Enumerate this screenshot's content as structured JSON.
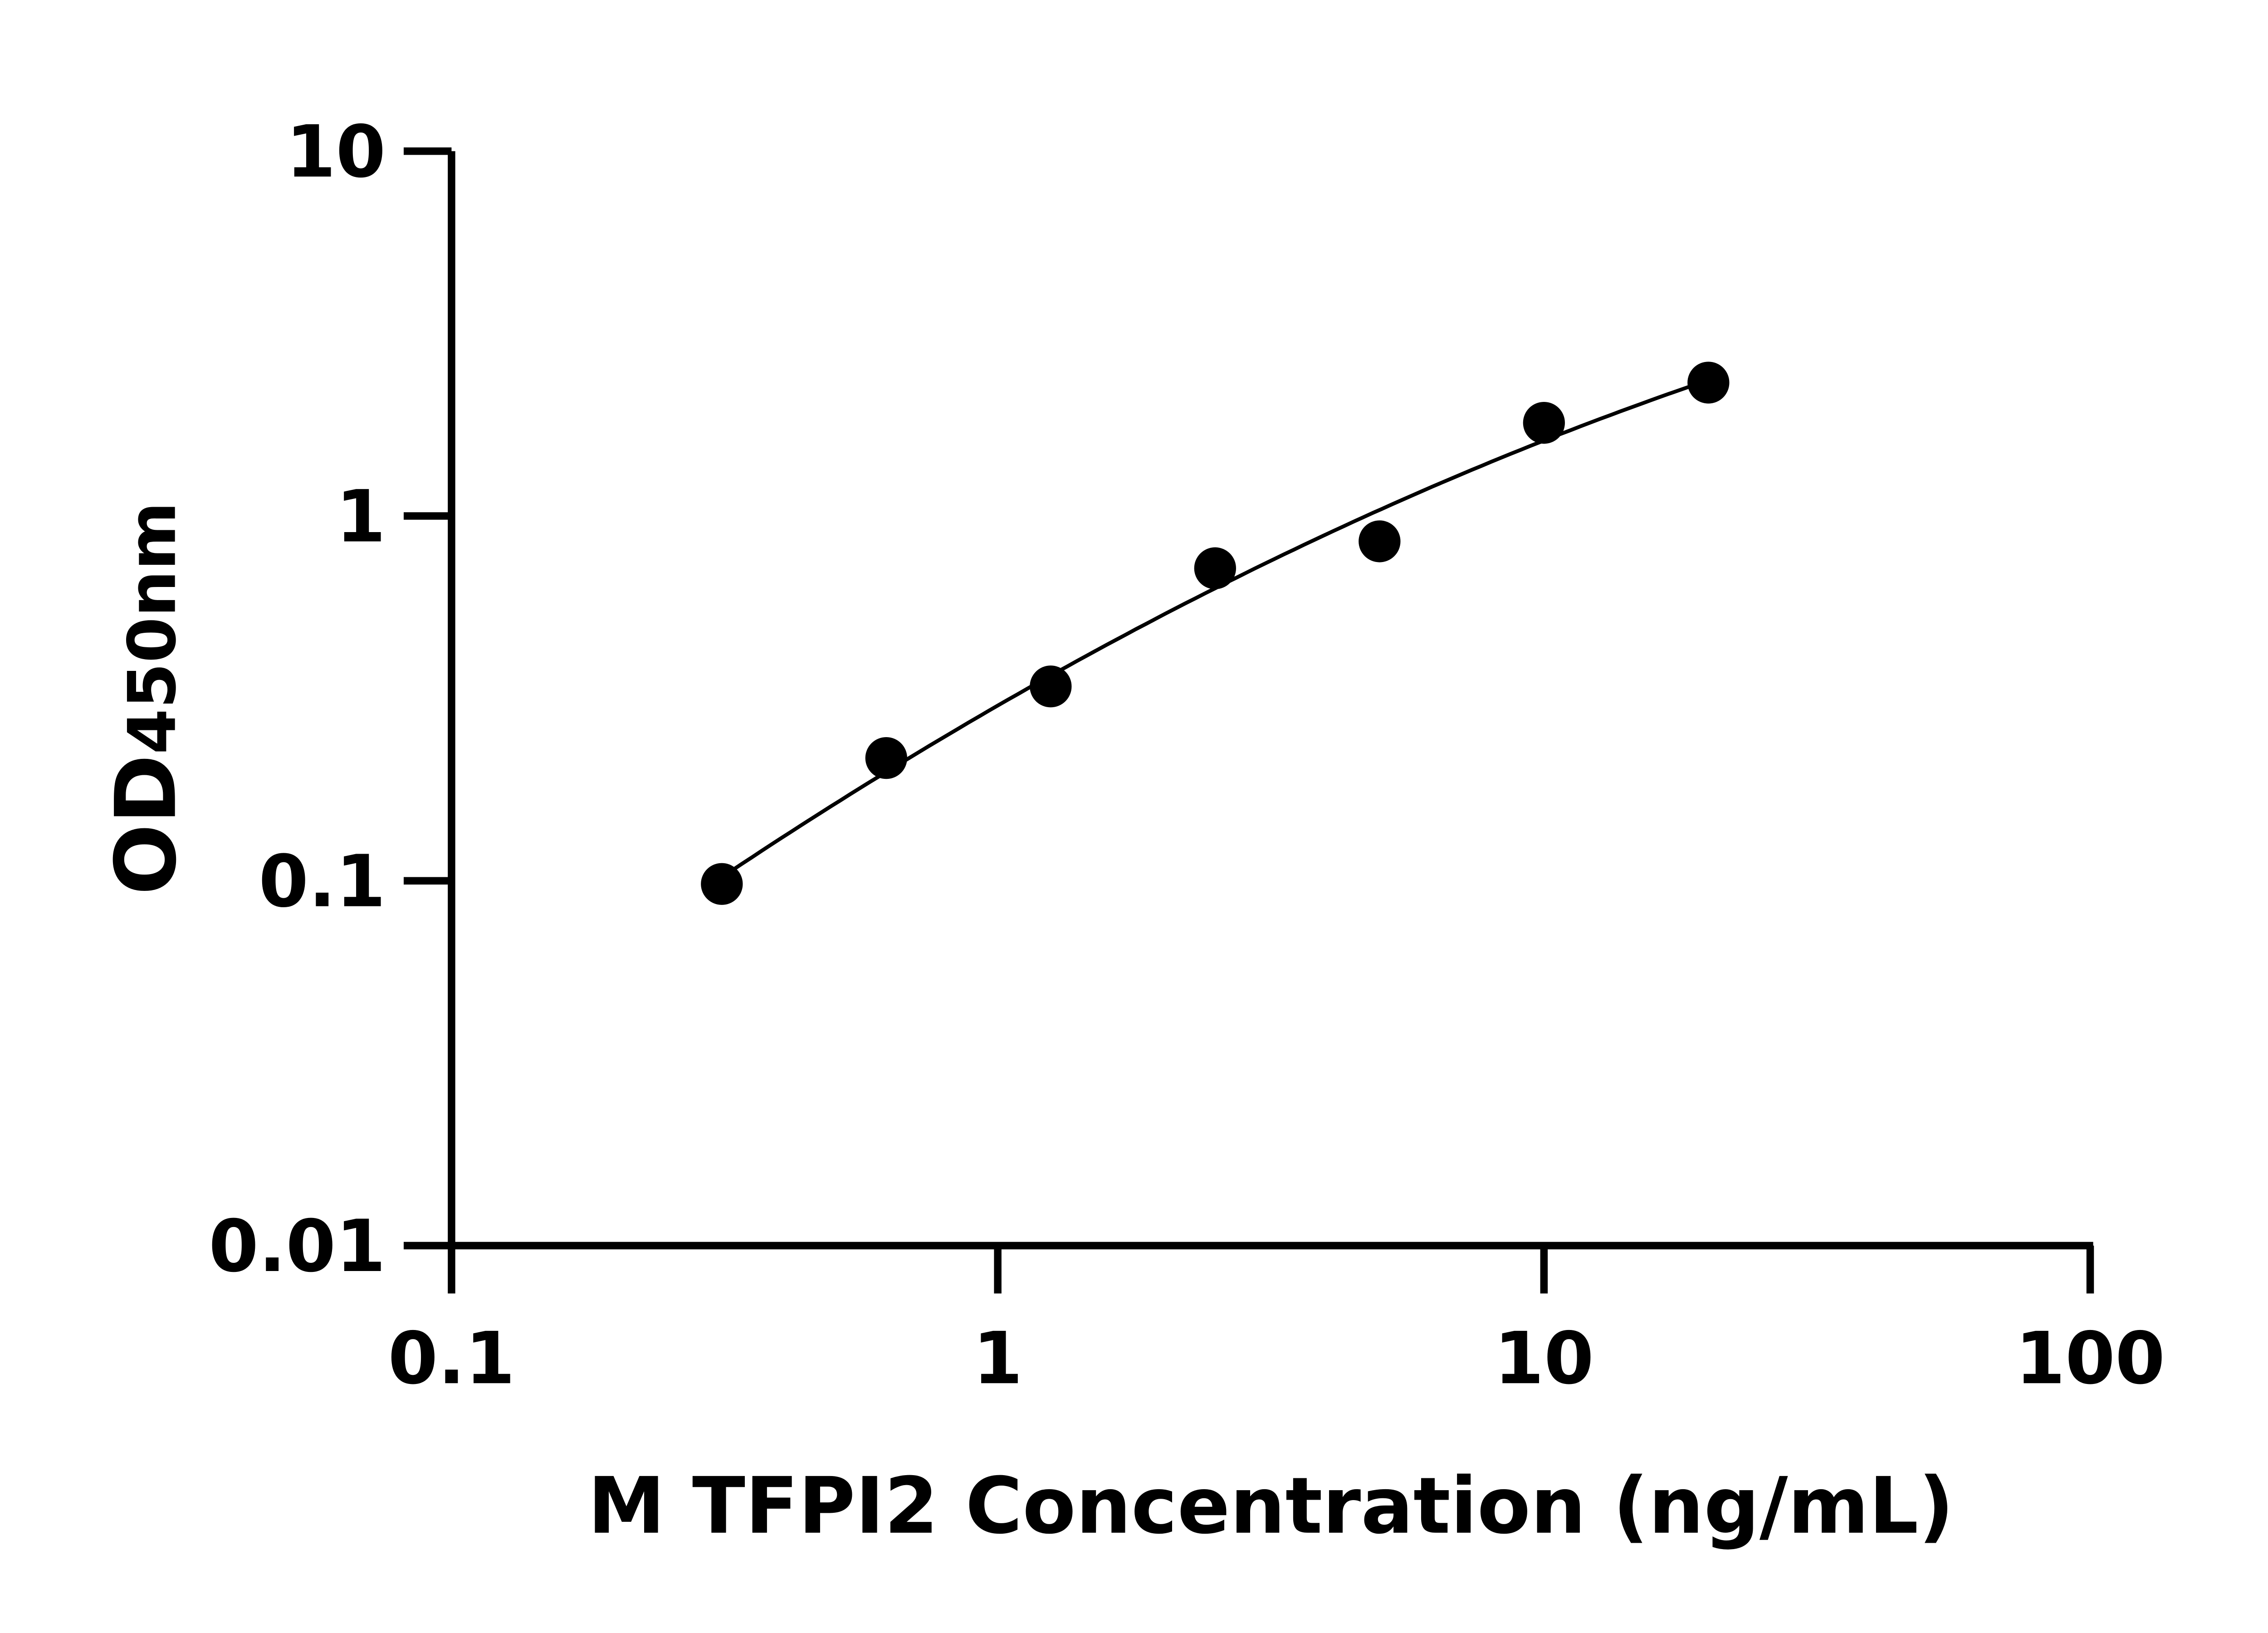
{
  "chart_data": {
    "type": "scatter",
    "title": "",
    "xlabel": "M TFPI2 Concentration (ng/mL)",
    "ylabel_main": "OD",
    "ylabel_sub": "450nm",
    "xscale": "log",
    "yscale": "log",
    "xlim": [
      0.1,
      100
    ],
    "ylim": [
      0.01,
      10
    ],
    "xticks": [
      "0.1",
      "1",
      "10",
      "100"
    ],
    "yticks": [
      "0.01",
      "0.1",
      "1",
      "10"
    ],
    "grid": false,
    "fit_curve": true,
    "x": [
      0.3125,
      0.625,
      1.25,
      2.5,
      5,
      10,
      20
    ],
    "y": [
      0.098,
      0.217,
      0.341,
      0.719,
      0.852,
      1.8,
      2.32
    ],
    "color": "#000000"
  }
}
